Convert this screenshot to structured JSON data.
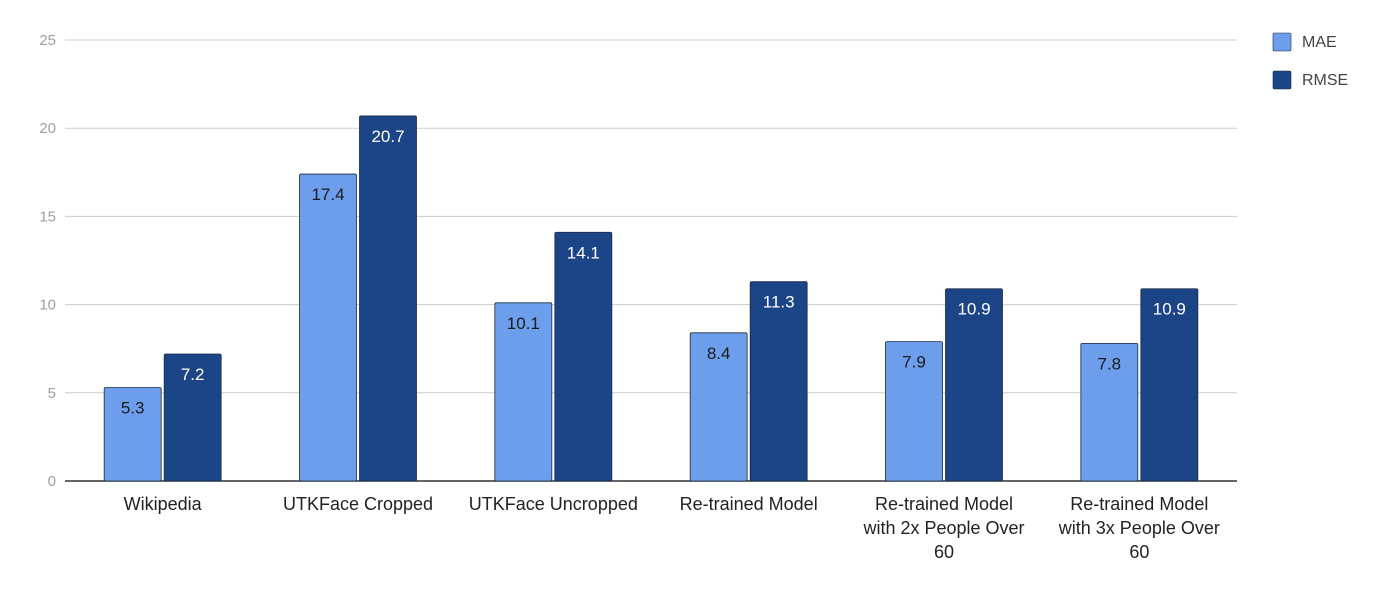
{
  "chart_data": {
    "type": "bar",
    "title": "",
    "xlabel": "",
    "ylabel": "",
    "categories": [
      [
        "Wikipedia"
      ],
      [
        "UTKFace Cropped"
      ],
      [
        "UTKFace Uncropped"
      ],
      [
        "Re-trained Model"
      ],
      [
        "Re-trained Model",
        "with 2x People Over",
        "60"
      ],
      [
        "Re-trained Model",
        "with 3x People Over",
        "60"
      ]
    ],
    "series": [
      {
        "name": "MAE",
        "color": "#6d9eeb",
        "label_color": "#1a1a1a",
        "values": [
          5.3,
          17.4,
          10.1,
          8.4,
          7.9,
          7.8
        ]
      },
      {
        "name": "RMSE",
        "color": "#1c4587",
        "label_color": "#ffffff",
        "values": [
          7.2,
          20.7,
          14.1,
          11.3,
          10.9,
          10.9
        ]
      }
    ],
    "ylim": [
      0,
      25
    ],
    "yticks": [
      0,
      5,
      10,
      15,
      20,
      25
    ],
    "grid": true,
    "legend_position": "top-right",
    "gridline_color": "#cccccc",
    "axis_color": "#333333"
  }
}
